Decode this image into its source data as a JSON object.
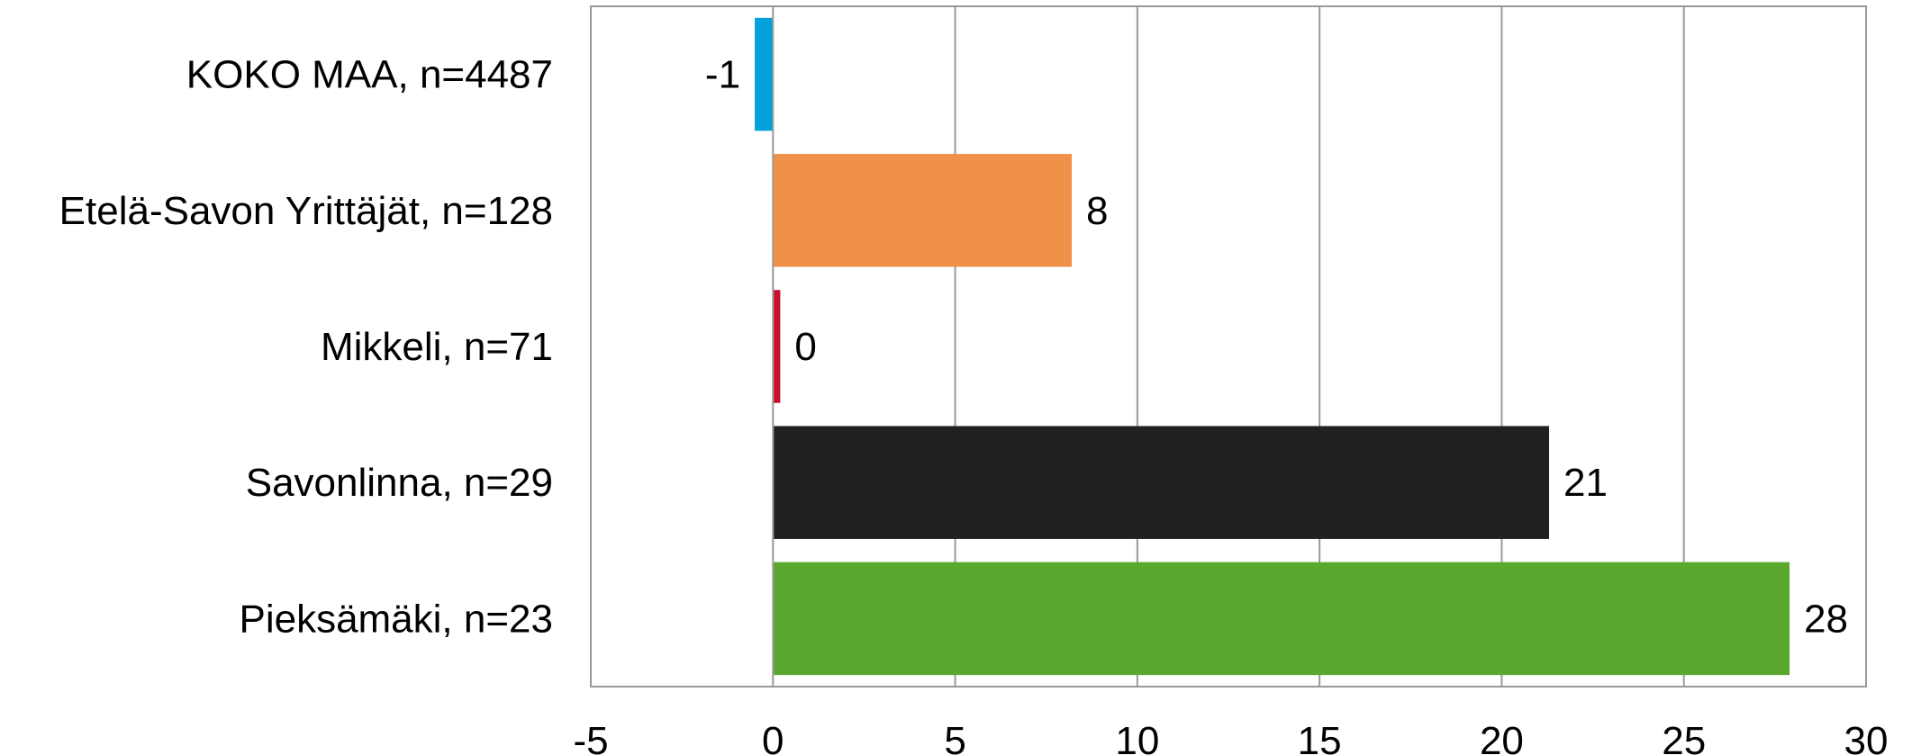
{
  "chart_data": {
    "type": "bar",
    "orientation": "horizontal",
    "title": "",
    "xlabel": "",
    "ylabel": "",
    "categories": [
      "KOKO MAA, n=4487",
      "Etelä-Savon Yrittäjät, n=128",
      "Mikkeli, n=71",
      "Savonlinna, n=29",
      "Pieksämäki, n=23"
    ],
    "values": [
      -0.5,
      8.2,
      0.2,
      21.3,
      27.9
    ],
    "data_labels": [
      "-1",
      "8",
      "0",
      "21",
      "28"
    ],
    "colors": [
      "#00a0db",
      "#f0914a",
      "#c8102e",
      "#222120",
      "#5aa92e"
    ],
    "xlim": [
      -5,
      30
    ],
    "xticks": [
      -5,
      0,
      5,
      10,
      15,
      20,
      25,
      30
    ],
    "xtick_labels": [
      "-5",
      "0",
      "5",
      "10",
      "15",
      "20",
      "25",
      "30"
    ],
    "grid": true,
    "legend": "none"
  }
}
